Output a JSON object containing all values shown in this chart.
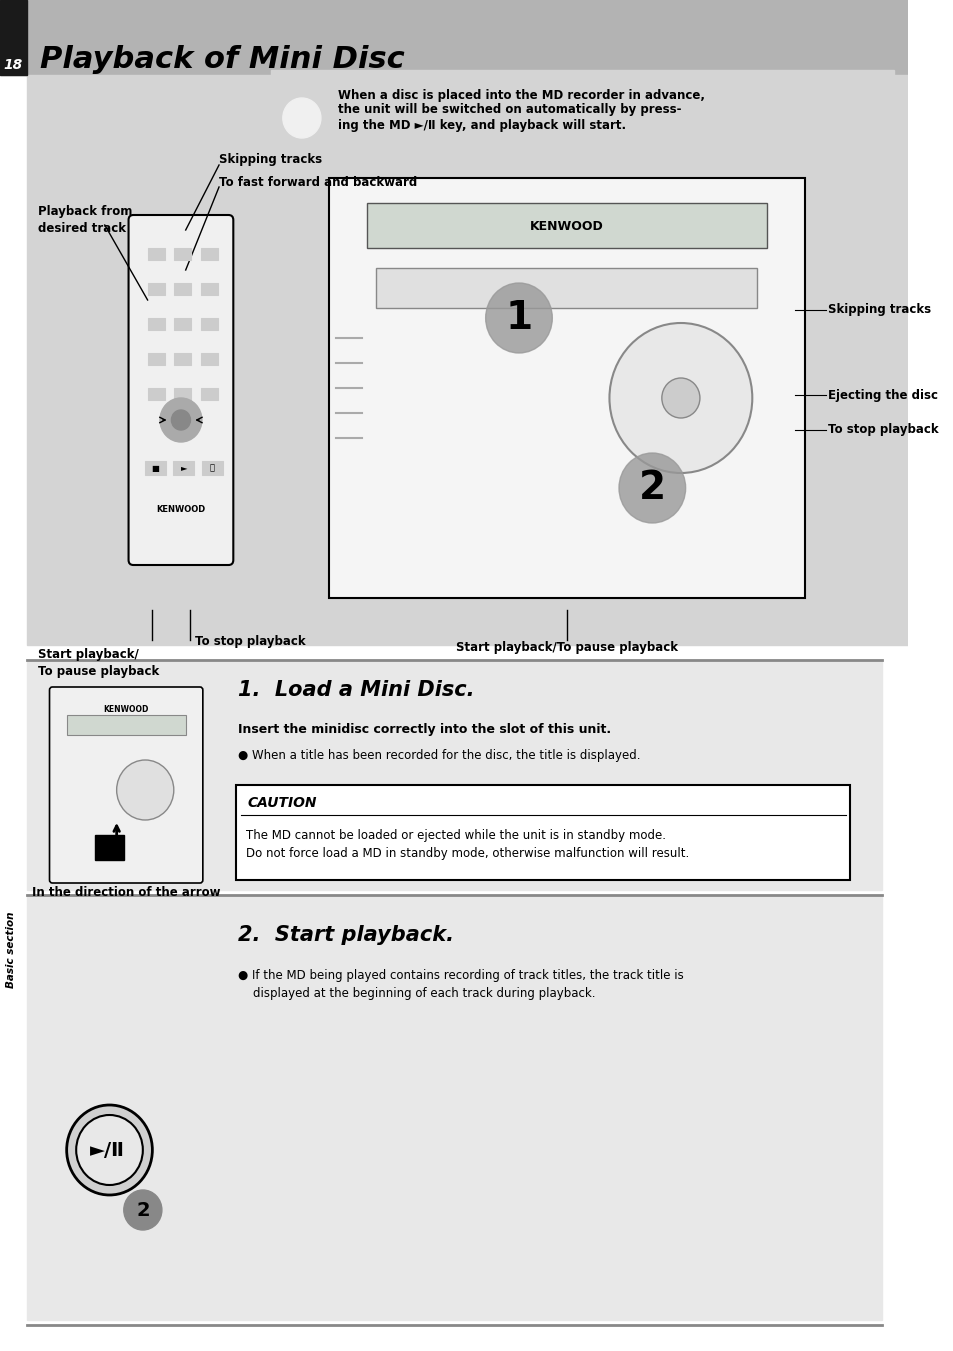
{
  "page_num": "18",
  "title": "Playback of Mini Disc",
  "bg_header": "#b0b0b0",
  "bg_main": "#d0d0d0",
  "bg_white": "#ffffff",
  "bg_section": "#e8e8e8",
  "intro_bold": "When a disc is placed into the MD recorder in advance,",
  "intro_bold2": "the unit will be switched on automatically by press-",
  "intro_bold3": "ing the MD ►/Ⅱ key, and playback will start.",
  "label_skipping": "Skipping tracks",
  "label_fastfwd": "To fast forward and backward",
  "label_playback_desired": "Playback from\ndesired track",
  "label_skip_right": "Skipping tracks",
  "label_eject": "Ejecting the disc",
  "label_stop_right": "To stop playback",
  "label_start_playback": "Start playback/\nTo pause playback",
  "label_stop_playback": "To stop playback",
  "label_start_pause": "Start playback/To pause playback",
  "step1_num": "1.",
  "step1_title": "Load a Mini Disc.",
  "step1_bold": "Insert the minidisc correctly into the slot of this unit.",
  "step1_bullet": "● When a title has been recorded for the disc, the title is displayed.",
  "caution_title": "CAUTION",
  "caution_text": "The MD cannot be loaded or ejected while the unit is in standby mode.\nDo not force load a MD in standby mode, otherwise malfunction will result.",
  "label_arrow": "In the direction of the arrow",
  "step2_num": "2.",
  "step2_title": "Start playback.",
  "step2_bullet": "● If the MD being played contains recording of track titles, the track title is\n    displayed at the beginning of each track during playback.",
  "sidebar_text": "Basic section"
}
